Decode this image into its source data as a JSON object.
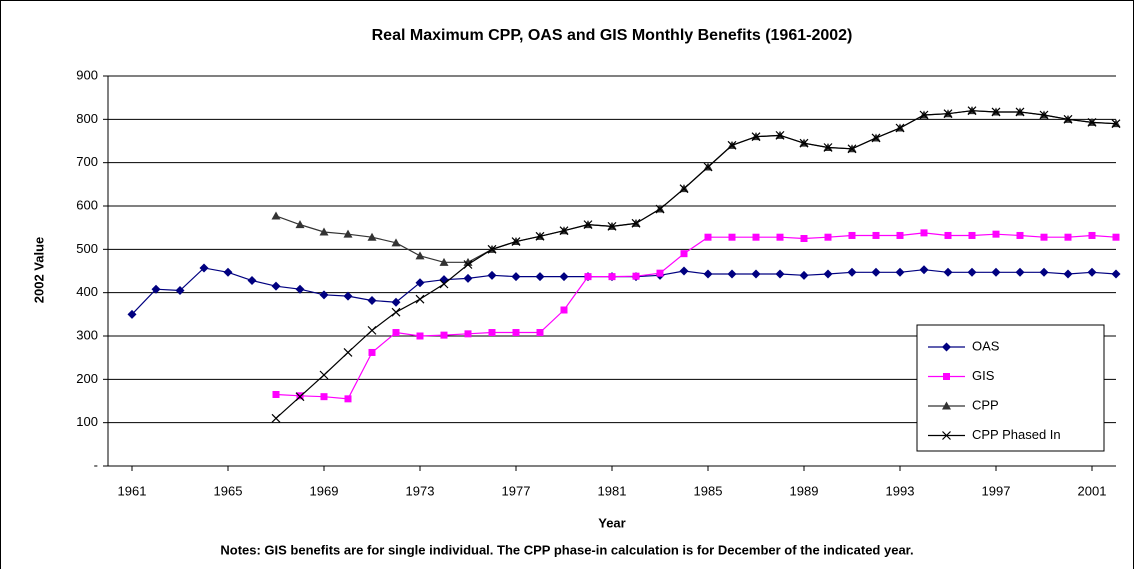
{
  "chart_data": {
    "type": "line",
    "title": "Real Maximum CPP, OAS and GIS Monthly Benefits (1961-2002)",
    "x_label": "Year",
    "y_label": "2002 Value",
    "note": "Notes: GIS benefits are for single individual. The CPP phase-in calculation is for December of the indicated year.",
    "x": [
      1961,
      1962,
      1963,
      1964,
      1965,
      1966,
      1967,
      1968,
      1969,
      1970,
      1971,
      1972,
      1973,
      1974,
      1975,
      1976,
      1977,
      1978,
      1979,
      1980,
      1981,
      1982,
      1983,
      1984,
      1985,
      1986,
      1987,
      1988,
      1989,
      1990,
      1991,
      1992,
      1993,
      1994,
      1995,
      1996,
      1997,
      1998,
      1999,
      2000,
      2001,
      2002
    ],
    "xlim": [
      1960,
      2002
    ],
    "xticks": [
      1961,
      1965,
      1969,
      1973,
      1977,
      1981,
      1985,
      1989,
      1993,
      1997,
      2001
    ],
    "ylim": [
      0,
      900
    ],
    "yticks": [
      {
        "value": 0,
        "label": "-"
      },
      100,
      200,
      300,
      400,
      500,
      600,
      700,
      800,
      900
    ],
    "grid": true,
    "legend_position": "lower right",
    "series": [
      {
        "name": "OAS",
        "color": "#000080",
        "marker": "diamond",
        "values": [
          350,
          408,
          405,
          457,
          447,
          428,
          415,
          408,
          395,
          392,
          382,
          378,
          423,
          430,
          433,
          440,
          437,
          437,
          437,
          437,
          437,
          437,
          440,
          450,
          443,
          443,
          443,
          443,
          440,
          443,
          447,
          447,
          447,
          453,
          447,
          447,
          447,
          447,
          447,
          443,
          447,
          443
        ]
      },
      {
        "name": "GIS",
        "color": "#ff00ff",
        "marker": "square",
        "values": [
          null,
          null,
          null,
          null,
          null,
          null,
          165,
          162,
          160,
          155,
          262,
          308,
          300,
          302,
          305,
          308,
          308,
          308,
          360,
          437,
          437,
          438,
          445,
          490,
          528,
          528,
          528,
          528,
          525,
          528,
          532,
          532,
          532,
          538,
          532,
          532,
          535,
          532,
          528,
          528,
          532,
          528
        ]
      },
      {
        "name": "CPP",
        "color": "#333333",
        "marker": "triangle",
        "values": [
          null,
          null,
          null,
          null,
          null,
          null,
          577,
          557,
          540,
          535,
          528,
          515,
          485,
          470,
          470,
          500,
          518,
          530,
          543,
          557,
          553,
          560,
          593,
          640,
          690,
          740,
          760,
          763,
          745,
          735,
          732,
          757,
          780,
          810,
          813,
          820,
          817,
          817,
          810,
          800,
          793,
          790
        ]
      },
      {
        "name": "CPP Phased In",
        "color": "#000000",
        "marker": "x",
        "values": [
          null,
          null,
          null,
          null,
          null,
          null,
          110,
          160,
          210,
          262,
          313,
          355,
          385,
          420,
          465,
          500,
          518,
          530,
          543,
          557,
          553,
          560,
          593,
          640,
          690,
          740,
          760,
          763,
          745,
          735,
          732,
          757,
          780,
          810,
          813,
          820,
          817,
          817,
          810,
          800,
          793,
          790
        ]
      }
    ]
  }
}
